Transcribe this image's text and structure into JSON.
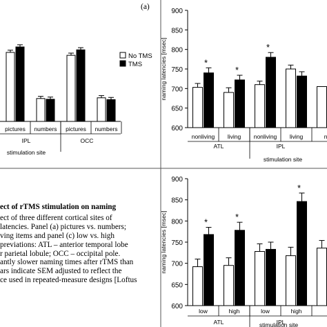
{
  "panel_a_label": "(a)",
  "caption": {
    "title": "ect of rTMS stimulation on naming",
    "lines": [
      "ect of three different cortical sites of",
      "latencies. Panel (a) pictures vs. numbers;",
      "ving items and panel (c) low vs. high",
      "previations: ATL – anterior temporal lobe",
      "r parietal lobule; OCC – occipital pole.",
      "antly slower naming times after rTMS than",
      "ars indicate SEM adjusted to reflect the",
      "ce used in repeated-measure designs [Loftus"
    ]
  },
  "colors": {
    "no_tms": "#ffffff",
    "tms": "#000000",
    "axis": "#000000",
    "divider": "#555555"
  },
  "chart_data": [
    {
      "id": "panel-a",
      "type": "bar",
      "xlabel": "stimulation site",
      "groups": [
        "IPL",
        "OCC"
      ],
      "categories": [
        "pictures",
        "numbers",
        "pictures",
        "numbers"
      ],
      "series": [
        {
          "name": "No TMS",
          "values": [
            790,
            663,
            782,
            665
          ]
        },
        {
          "name": "TMS",
          "values": [
            805,
            661,
            797,
            660
          ]
        }
      ],
      "errors": [
        [
          6,
          6,
          6,
          6
        ],
        [
          6,
          6,
          6,
          6
        ]
      ],
      "ylim": [
        600,
        900
      ]
    },
    {
      "id": "panel-b",
      "type": "bar",
      "ylabel": "naming latencies [msec]",
      "xlabel": "stimulation site",
      "yticks": [
        "600",
        "650",
        "700",
        "750",
        "800",
        "850",
        "900"
      ],
      "groups": [
        "ATL",
        "IPL",
        ""
      ],
      "categories": [
        "nonliving",
        "living",
        "nonliving",
        "living",
        "no"
      ],
      "series": [
        {
          "name": "No TMS",
          "values": [
            703,
            690,
            710,
            750,
            705
          ]
        },
        {
          "name": "TMS",
          "values": [
            740,
            722,
            780,
            732,
            null
          ]
        }
      ],
      "errors": [
        [
          10,
          12,
          9,
          10,
          0
        ],
        [
          13,
          12,
          12,
          11,
          0
        ]
      ],
      "significance": [
        "*",
        "*",
        "*",
        "",
        ""
      ],
      "ylim": [
        600,
        900
      ],
      "legend": {
        "position": "left",
        "entries": [
          "No TMS",
          "TMS"
        ]
      }
    },
    {
      "id": "panel-c",
      "type": "bar",
      "ylabel": "naming latencies [msec]",
      "xlabel": "stimulation site",
      "yticks": [
        "600",
        "650",
        "700",
        "750",
        "800",
        "850",
        "900"
      ],
      "groups": [
        "ATL",
        "IPL",
        ""
      ],
      "categories": [
        "low",
        "high",
        "low",
        "high",
        ""
      ],
      "series": [
        {
          "name": "No TMS",
          "values": [
            692,
            695,
            728,
            718,
            736
          ]
        },
        {
          "name": "TMS",
          "values": [
            768,
            778,
            733,
            846,
            null
          ]
        }
      ],
      "errors": [
        [
          18,
          18,
          18,
          20,
          18
        ],
        [
          17,
          19,
          17,
          20,
          0
        ]
      ],
      "significance": [
        "*",
        "*",
        "",
        "*",
        ""
      ],
      "ylim": [
        600,
        900
      ]
    }
  ]
}
